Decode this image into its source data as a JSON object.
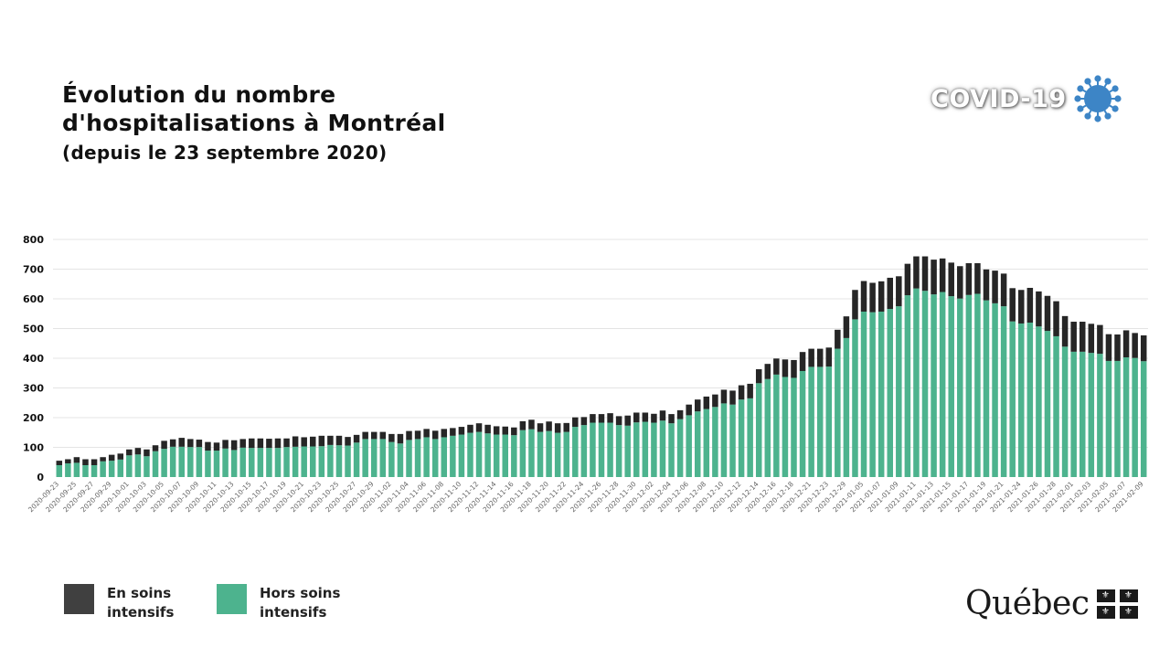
{
  "title": {
    "line1": "Évolution du nombre",
    "line2": "d'hospitalisations à Montréal",
    "subtitle": "(depuis le 23 septembre 2020)"
  },
  "branding": {
    "covid_logo_text": "COVID-19",
    "covid_icon": "virus-icon",
    "gov_logo_text": "Québec",
    "gov_flag_icon": "fleur-de-lis-flag-icon"
  },
  "legend": {
    "items": [
      {
        "label_line1": "En soins",
        "label_line2": "intensifs",
        "color": "#404040"
      },
      {
        "label_line1": "Hors soins",
        "label_line2": "intensifs",
        "color": "#4db38e"
      }
    ]
  },
  "chart_data": {
    "type": "bar",
    "stacked": true,
    "ylim": [
      0,
      800
    ],
    "y_ticks": [
      0,
      100,
      200,
      300,
      400,
      500,
      600,
      700,
      800
    ],
    "grid": true,
    "legend_placement": "bottom-left",
    "x_tick_labels": [
      "2020-09-23",
      "2020-09-25",
      "2020-09-27",
      "2020-09-29",
      "2020-10-01",
      "2020-10-03",
      "2020-10-05",
      "2020-10-07",
      "2020-10-09",
      "2020-10-11",
      "2020-10-13",
      "2020-10-15",
      "2020-10-17",
      "2020-10-19",
      "2020-10-21",
      "2020-10-23",
      "2020-10-25",
      "2020-10-27",
      "2020-10-29",
      "2020-11-02",
      "2020-11-04",
      "2020-11-06",
      "2020-11-08",
      "2020-11-10",
      "2020-11-12",
      "2020-11-14",
      "2020-11-16",
      "2020-11-18",
      "2020-11-20",
      "2020-11-22",
      "2020-11-24",
      "2020-11-26",
      "2020-11-28",
      "2020-11-30",
      "2020-12-02",
      "2020-12-04",
      "2020-12-06",
      "2020-12-08",
      "2020-12-10",
      "2020-12-12",
      "2020-12-14",
      "2020-12-16",
      "2020-12-18",
      "2020-12-21",
      "2020-12-23",
      "2020-12-29",
      "2021-01-05",
      "2021-01-07",
      "2021-01-09",
      "2021-01-11",
      "2021-01-13",
      "2021-01-15",
      "2021-01-17",
      "2021-01-19",
      "2021-01-21",
      "2021-01-24",
      "2021-01-26",
      "2021-01-28",
      "2021-02-01",
      "2021-02-03",
      "2021-02-05",
      "2021-02-07",
      "2021-02-09"
    ],
    "x_tick_every": 2,
    "series": [
      {
        "name": "Hors soins intensifs",
        "color": "#4db38e",
        "values": [
          40,
          46,
          48,
          40,
          40,
          53,
          55,
          59,
          73,
          76,
          70,
          87,
          95,
          102,
          102,
          101,
          101,
          89,
          89,
          96,
          91,
          99,
          98,
          98,
          98,
          98,
          101,
          102,
          103,
          103,
          104,
          108,
          107,
          106,
          116,
          128,
          128,
          128,
          118,
          113,
          125,
          128,
          134,
          128,
          134,
          139,
          143,
          149,
          152,
          147,
          143,
          143,
          141,
          158,
          161,
          152,
          155,
          149,
          152,
          169,
          175,
          183,
          183,
          183,
          175,
          173,
          184,
          186,
          183,
          190,
          181,
          195,
          208,
          221,
          229,
          236,
          248,
          244,
          261,
          265,
          316,
          330,
          345,
          337,
          334,
          357,
          371,
          371,
          372,
          432,
          468,
          531,
          557,
          555,
          557,
          566,
          575,
          612,
          635,
          627,
          615,
          623,
          609,
          601,
          613,
          617,
          595,
          585,
          575,
          524,
          517,
          520,
          507,
          492,
          474,
          439,
          422,
          422,
          418,
          415,
          391,
          391,
          403,
          401,
          390
        ]
      },
      {
        "name": "En soins intensifs",
        "color": "#262626",
        "values": [
          15,
          14,
          19,
          20,
          20,
          14,
          20,
          20,
          20,
          22,
          23,
          20,
          27,
          25,
          30,
          27,
          25,
          29,
          27,
          29,
          33,
          29,
          32,
          32,
          31,
          32,
          29,
          35,
          31,
          33,
          35,
          31,
          32,
          29,
          26,
          24,
          24,
          24,
          27,
          32,
          30,
          28,
          28,
          28,
          28,
          26,
          26,
          27,
          29,
          29,
          28,
          27,
          26,
          30,
          32,
          29,
          32,
          32,
          30,
          32,
          27,
          29,
          29,
          32,
          30,
          34,
          33,
          31,
          30,
          34,
          31,
          30,
          36,
          40,
          42,
          42,
          46,
          47,
          48,
          49,
          47,
          51,
          54,
          59,
          60,
          64,
          61,
          61,
          64,
          64,
          73,
          99,
          103,
          99,
          102,
          105,
          101,
          106,
          108,
          116,
          117,
          113,
          113,
          109,
          107,
          103,
          104,
          110,
          110,
          112,
          113,
          117,
          118,
          118,
          118,
          103,
          101,
          101,
          98,
          97,
          90,
          89,
          91,
          84,
          87
        ]
      }
    ]
  }
}
